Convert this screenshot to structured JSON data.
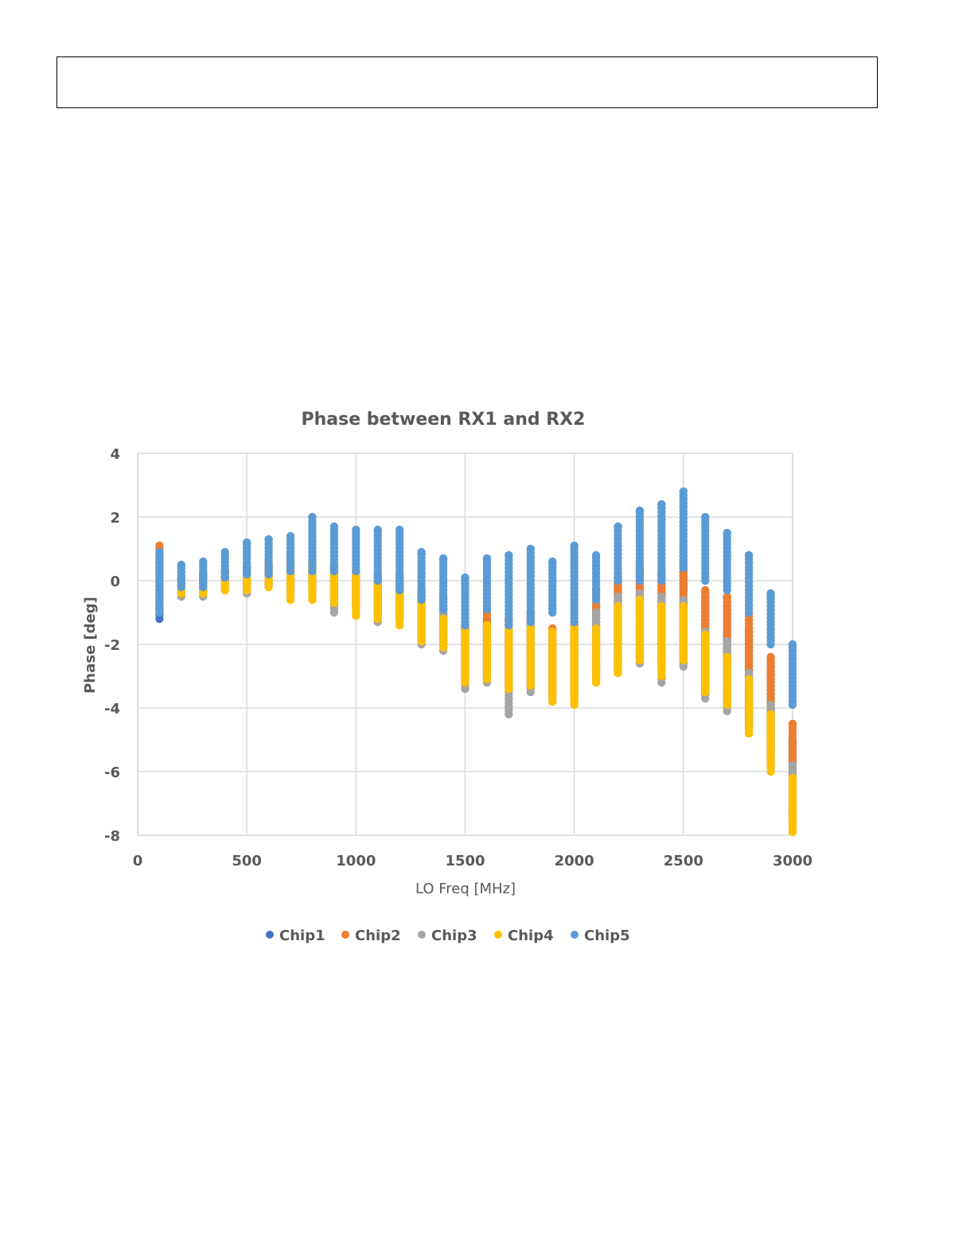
{
  "chart_data": {
    "type": "scatter",
    "title": "Phase between RX1 and RX2",
    "xlabel": "LO Freq [MHz]",
    "ylabel": "Phase [deg]",
    "xlim": [
      0,
      3000
    ],
    "ylim": [
      -8,
      4
    ],
    "x_ticks": [
      "0",
      "500",
      "1000",
      "1500",
      "2000",
      "2500",
      "3000"
    ],
    "y_ticks": [
      "4",
      "2",
      "0",
      "-2",
      "-4",
      "-6",
      "-8"
    ],
    "grid": true,
    "legend_position": "bottom",
    "x": [
      100,
      200,
      300,
      400,
      500,
      600,
      700,
      800,
      900,
      1000,
      1100,
      1200,
      1300,
      1400,
      1500,
      1600,
      1700,
      1800,
      1900,
      2000,
      2100,
      2200,
      2300,
      2400,
      2500,
      2600,
      2700,
      2800,
      2900,
      3000
    ],
    "series": [
      {
        "name": "Chip1",
        "color": "#4472C4",
        "ranges": [
          [
            -1.2,
            -0.6
          ],
          [
            -0.4,
            0.1
          ],
          [
            -0.3,
            0.2
          ],
          [
            -0.2,
            0.3
          ],
          [
            -0.2,
            0.4
          ],
          [
            -0.1,
            0.5
          ],
          [
            -0.2,
            0.6
          ],
          [
            -0.3,
            0.6
          ],
          [
            -0.6,
            0.4
          ],
          [
            -0.8,
            0.3
          ],
          [
            -1.0,
            0.2
          ],
          [
            -1.2,
            0.1
          ],
          [
            -1.8,
            -0.4
          ],
          [
            -2.0,
            -0.6
          ],
          [
            -3.0,
            -1.5
          ],
          [
            -3.0,
            -1.2
          ],
          [
            -3.3,
            -1.4
          ],
          [
            -3.3,
            -1.2
          ],
          [
            -3.6,
            -1.7
          ],
          [
            -3.6,
            -1.7
          ],
          [
            -3.1,
            -0.8
          ],
          [
            -2.7,
            0.1
          ],
          [
            -2.4,
            0.3
          ],
          [
            -2.7,
            0.2
          ],
          [
            -2.5,
            0.6
          ],
          [
            -3.4,
            -0.5
          ],
          [
            -3.8,
            -0.8
          ],
          [
            -4.5,
            -1.5
          ],
          [
            -5.6,
            -2.6
          ],
          [
            -7.5,
            -5.0
          ]
        ]
      },
      {
        "name": "Chip2",
        "color": "#ED7D31",
        "ranges": [
          [
            -0.9,
            1.1
          ],
          [
            -0.4,
            0.1
          ],
          [
            -0.3,
            0.2
          ],
          [
            -0.2,
            0.3
          ],
          [
            -0.2,
            0.4
          ],
          [
            -0.1,
            0.5
          ],
          [
            -0.2,
            0.7
          ],
          [
            -0.2,
            0.6
          ],
          [
            -0.5,
            0.5
          ],
          [
            -0.8,
            0.3
          ],
          [
            -1.0,
            0.2
          ],
          [
            -1.2,
            0.2
          ],
          [
            -1.9,
            -0.3
          ],
          [
            -2.0,
            -0.5
          ],
          [
            -3.1,
            -1.3
          ],
          [
            -3.0,
            -1.0
          ],
          [
            -3.3,
            -1.2
          ],
          [
            -3.3,
            -1.0
          ],
          [
            -3.6,
            -1.5
          ],
          [
            -3.7,
            -1.3
          ],
          [
            -3.1,
            -0.3
          ],
          [
            -2.8,
            0.2
          ],
          [
            -2.5,
            0.5
          ],
          [
            -2.8,
            0.3
          ],
          [
            -2.6,
            1.1
          ],
          [
            -3.5,
            -0.3
          ],
          [
            -3.9,
            -0.5
          ],
          [
            -4.6,
            -1.0
          ],
          [
            -5.6,
            -2.4
          ],
          [
            -7.6,
            -4.5
          ]
        ]
      },
      {
        "name": "Chip3",
        "color": "#A5A5A5",
        "ranges": [
          [
            -0.8,
            0.6
          ],
          [
            -0.5,
            0.0
          ],
          [
            -0.5,
            0.1
          ],
          [
            -0.3,
            0.2
          ],
          [
            -0.4,
            0.3
          ],
          [
            -0.2,
            0.4
          ],
          [
            -0.3,
            0.5
          ],
          [
            -0.4,
            0.4
          ],
          [
            -1.0,
            0.3
          ],
          [
            -1.1,
            0.2
          ],
          [
            -1.3,
            0.1
          ],
          [
            -1.4,
            0.0
          ],
          [
            -2.0,
            -0.6
          ],
          [
            -2.2,
            -0.8
          ],
          [
            -3.4,
            -1.6
          ],
          [
            -3.2,
            -1.4
          ],
          [
            -4.2,
            -1.6
          ],
          [
            -3.5,
            -1.4
          ],
          [
            -3.8,
            -1.8
          ],
          [
            -3.8,
            -1.8
          ],
          [
            -3.2,
            -1.0
          ],
          [
            -2.9,
            -0.5
          ],
          [
            -2.6,
            -0.4
          ],
          [
            -3.2,
            -0.5
          ],
          [
            -2.7,
            -0.6
          ],
          [
            -3.7,
            -1.6
          ],
          [
            -4.1,
            -1.9
          ],
          [
            -4.8,
            -2.9
          ],
          [
            -5.8,
            -3.9
          ],
          [
            -7.7,
            -5.8
          ]
        ]
      },
      {
        "name": "Chip4",
        "color": "#FFC000",
        "ranges": [
          [
            -0.9,
            -0.6
          ],
          [
            -0.4,
            -0.1
          ],
          [
            -0.4,
            -0.1
          ],
          [
            -0.3,
            0.2
          ],
          [
            -0.3,
            0.3
          ],
          [
            -0.2,
            0.6
          ],
          [
            -0.6,
            0.6
          ],
          [
            -0.6,
            0.6
          ],
          [
            -0.7,
            0.5
          ],
          [
            -1.1,
            0.2
          ],
          [
            -1.2,
            0.0
          ],
          [
            -1.4,
            -0.2
          ],
          [
            -1.9,
            -0.7
          ],
          [
            -2.1,
            -1.2
          ],
          [
            -3.2,
            -1.6
          ],
          [
            -3.1,
            -1.4
          ],
          [
            -3.4,
            -1.5
          ],
          [
            -3.3,
            -1.5
          ],
          [
            -3.8,
            -1.6
          ],
          [
            -3.9,
            -1.5
          ],
          [
            -3.2,
            -1.5
          ],
          [
            -2.9,
            -0.8
          ],
          [
            -2.5,
            -0.6
          ],
          [
            -3.0,
            -0.8
          ],
          [
            -2.5,
            -0.8
          ],
          [
            -3.5,
            -1.7
          ],
          [
            -3.9,
            -2.4
          ],
          [
            -4.8,
            -3.1
          ],
          [
            -6.0,
            -4.2
          ],
          [
            -7.9,
            -6.2
          ]
        ]
      },
      {
        "name": "Chip5",
        "color": "#5B9BD5",
        "ranges": [
          [
            -1.0,
            0.9
          ],
          [
            -0.2,
            0.5
          ],
          [
            -0.2,
            0.6
          ],
          [
            0.1,
            0.9
          ],
          [
            0.2,
            1.2
          ],
          [
            0.2,
            1.3
          ],
          [
            0.3,
            1.4
          ],
          [
            0.3,
            2.0
          ],
          [
            0.3,
            1.7
          ],
          [
            0.3,
            1.6
          ],
          [
            0.0,
            1.6
          ],
          [
            -0.3,
            1.6
          ],
          [
            -0.6,
            0.9
          ],
          [
            -0.9,
            0.7
          ],
          [
            -1.4,
            0.1
          ],
          [
            -0.9,
            0.7
          ],
          [
            -1.4,
            0.8
          ],
          [
            -1.3,
            1.0
          ],
          [
            -1.0,
            0.6
          ],
          [
            -1.3,
            1.1
          ],
          [
            -0.6,
            0.8
          ],
          [
            0.0,
            1.7
          ],
          [
            0.0,
            2.2
          ],
          [
            0.0,
            2.4
          ],
          [
            0.4,
            2.8
          ],
          [
            0.0,
            2.0
          ],
          [
            -0.3,
            1.5
          ],
          [
            -1.0,
            0.8
          ],
          [
            -2.0,
            -0.4
          ],
          [
            -3.9,
            -2.0
          ]
        ]
      }
    ]
  }
}
